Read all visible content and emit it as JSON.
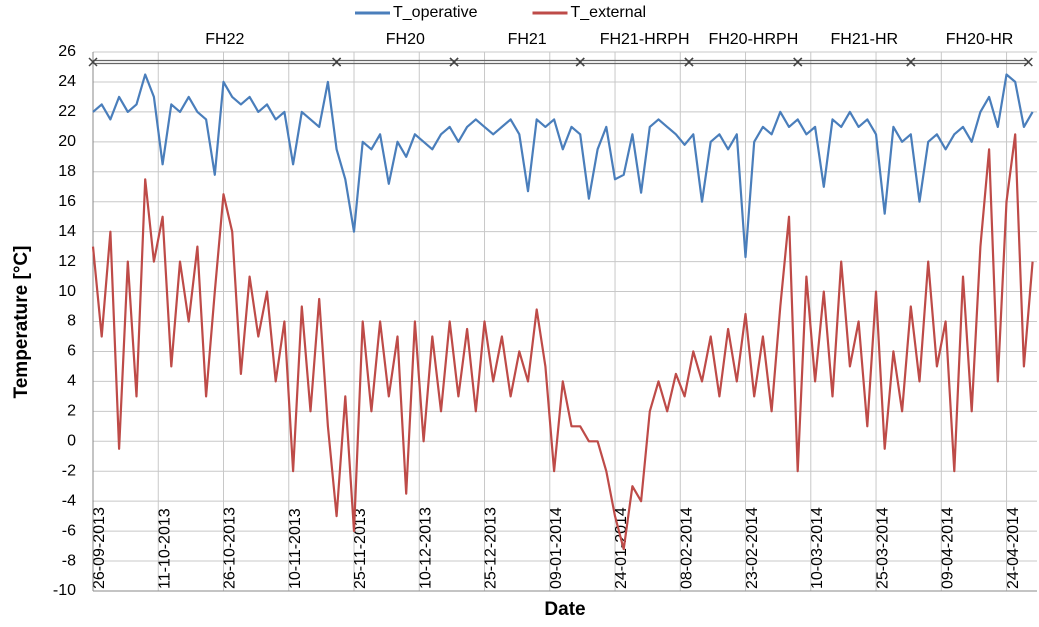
{
  "chart_data": {
    "type": "line",
    "y_label": "Temperature [°C]",
    "x_label": "Date",
    "grid": true,
    "legend": "top",
    "x": [
      "26-09-2013",
      "28-09-2013",
      "30-09-2013",
      "02-10-2013",
      "04-10-2013",
      "06-10-2013",
      "08-10-2013",
      "10-10-2013",
      "12-10-2013",
      "14-10-2013",
      "16-10-2013",
      "18-10-2013",
      "20-10-2013",
      "22-10-2013",
      "24-10-2013",
      "26-10-2013",
      "28-10-2013",
      "30-10-2013",
      "01-11-2013",
      "03-11-2013",
      "05-11-2013",
      "07-11-2013",
      "09-11-2013",
      "11-11-2013",
      "13-11-2013",
      "15-11-2013",
      "17-11-2013",
      "19-11-2013",
      "21-11-2013",
      "23-11-2013",
      "25-11-2013",
      "27-11-2013",
      "29-11-2013",
      "01-12-2013",
      "03-12-2013",
      "05-12-2013",
      "07-12-2013",
      "09-12-2013",
      "11-12-2013",
      "13-12-2013",
      "15-12-2013",
      "17-12-2013",
      "19-12-2013",
      "21-12-2013",
      "23-12-2013",
      "25-12-2013",
      "27-12-2013",
      "29-12-2013",
      "31-12-2013",
      "02-01-2014",
      "04-01-2014",
      "06-01-2014",
      "08-01-2014",
      "10-01-2014",
      "12-01-2014",
      "14-01-2014",
      "16-01-2014",
      "18-01-2014",
      "20-01-2014",
      "22-01-2014",
      "24-01-2014",
      "26-01-2014",
      "28-01-2014",
      "30-01-2014",
      "01-02-2014",
      "03-02-2014",
      "05-02-2014",
      "07-02-2014",
      "09-02-2014",
      "11-02-2014",
      "13-02-2014",
      "15-02-2014",
      "17-02-2014",
      "19-02-2014",
      "21-02-2014",
      "23-02-2014",
      "25-02-2014",
      "27-02-2014",
      "01-03-2014",
      "03-03-2014",
      "05-03-2014",
      "07-03-2014",
      "09-03-2014",
      "11-03-2014",
      "13-03-2014",
      "15-03-2014",
      "17-03-2014",
      "19-03-2014",
      "21-03-2014",
      "23-03-2014",
      "25-03-2014",
      "27-03-2014",
      "29-03-2014",
      "31-03-2014",
      "02-04-2014",
      "04-04-2014",
      "06-04-2014",
      "08-04-2014",
      "10-04-2014",
      "12-04-2014",
      "14-04-2014",
      "16-04-2014",
      "18-04-2014",
      "20-04-2014",
      "22-04-2014",
      "24-04-2014",
      "26-04-2014",
      "28-04-2014",
      "30-04-2014"
    ],
    "series": [
      {
        "name": "T_operative",
        "color": "#4a7ebb",
        "values": [
          22,
          22.5,
          21.5,
          23,
          22,
          22.5,
          24.5,
          23,
          18.5,
          22.5,
          22,
          23,
          22,
          21.5,
          17.8,
          24,
          23,
          22.5,
          23,
          22,
          22.5,
          21.5,
          22,
          18.5,
          22,
          21.5,
          21,
          24,
          19.5,
          17.5,
          14,
          20,
          19.5,
          20.5,
          17.2,
          20,
          19,
          20.5,
          20,
          19.5,
          20.5,
          21,
          20,
          21,
          21.5,
          21,
          20.5,
          21,
          21.5,
          20.5,
          16.7,
          21.5,
          21,
          21.5,
          19.5,
          21,
          20.5,
          16.2,
          19.5,
          21,
          17.5,
          17.8,
          20.5,
          16.6,
          21,
          21.5,
          21,
          20.5,
          19.8,
          20.5,
          16,
          20,
          20.5,
          19.5,
          20.5,
          12.3,
          20,
          21,
          20.5,
          22,
          21,
          21.5,
          20.5,
          21,
          17,
          21.5,
          21,
          22,
          21,
          21.5,
          20.5,
          15.2,
          21,
          20,
          20.5,
          16,
          20,
          20.5,
          19.5,
          20.5,
          21,
          20,
          22,
          23,
          21,
          24.5,
          24,
          21,
          22
        ]
      },
      {
        "name": "T_external",
        "color": "#be4b48",
        "values": [
          13,
          7,
          14,
          -0.5,
          12,
          3,
          17.5,
          12,
          15,
          5,
          12,
          8,
          13,
          3,
          10,
          16.5,
          14,
          4.5,
          11,
          7,
          10,
          4,
          8,
          -2,
          9,
          2,
          9.5,
          1,
          -5,
          3,
          -6,
          8,
          2,
          8,
          3,
          7,
          -3.5,
          8,
          0,
          7,
          2,
          8,
          3,
          7.5,
          2,
          8,
          4,
          7,
          3,
          6,
          4,
          8.8,
          5,
          -2,
          4,
          1,
          1,
          0,
          0,
          -2,
          -5,
          -7.2,
          -3,
          -4,
          2,
          4,
          2,
          4.5,
          3,
          6,
          4,
          7,
          3,
          7.5,
          4,
          8.5,
          3,
          7,
          2,
          9,
          15,
          -2,
          11,
          4,
          10,
          3,
          12,
          5,
          8,
          1,
          10,
          -0.5,
          6,
          2,
          9,
          4,
          12,
          5,
          8,
          -2,
          11,
          2,
          13,
          19.5,
          4,
          16,
          20.5,
          5,
          12
        ]
      }
    ],
    "xlim": [
      "26-09-2013",
      "01-05-2014"
    ],
    "xticks": [
      "26-09-2013",
      "11-10-2013",
      "26-10-2013",
      "10-11-2013",
      "25-11-2013",
      "10-12-2013",
      "25-12-2013",
      "09-01-2014",
      "24-01-2014",
      "08-02-2014",
      "23-02-2014",
      "10-03-2014",
      "25-03-2014",
      "09-04-2014",
      "24-04-2014"
    ],
    "ylim": [
      -10,
      26
    ],
    "yticks": [
      -10,
      -8,
      -6,
      -4,
      -2,
      0,
      2,
      4,
      6,
      8,
      10,
      12,
      14,
      16,
      18,
      20,
      22,
      24,
      26
    ],
    "periods": [
      {
        "label": "FH22",
        "start": "26-09-2013",
        "end": "21-11-2013"
      },
      {
        "label": "FH20",
        "start": "21-11-2013",
        "end": "18-12-2013"
      },
      {
        "label": "FH21",
        "start": "18-12-2013",
        "end": "16-01-2014"
      },
      {
        "label": "FH21-HRPH",
        "start": "16-01-2014",
        "end": "10-02-2014"
      },
      {
        "label": "FH20-HRPH",
        "start": "10-02-2014",
        "end": "07-03-2014"
      },
      {
        "label": "FH21-HR",
        "start": "07-03-2014",
        "end": "02-04-2014"
      },
      {
        "label": "FH20-HR",
        "start": "02-04-2014",
        "end": "29-04-2014"
      }
    ]
  }
}
